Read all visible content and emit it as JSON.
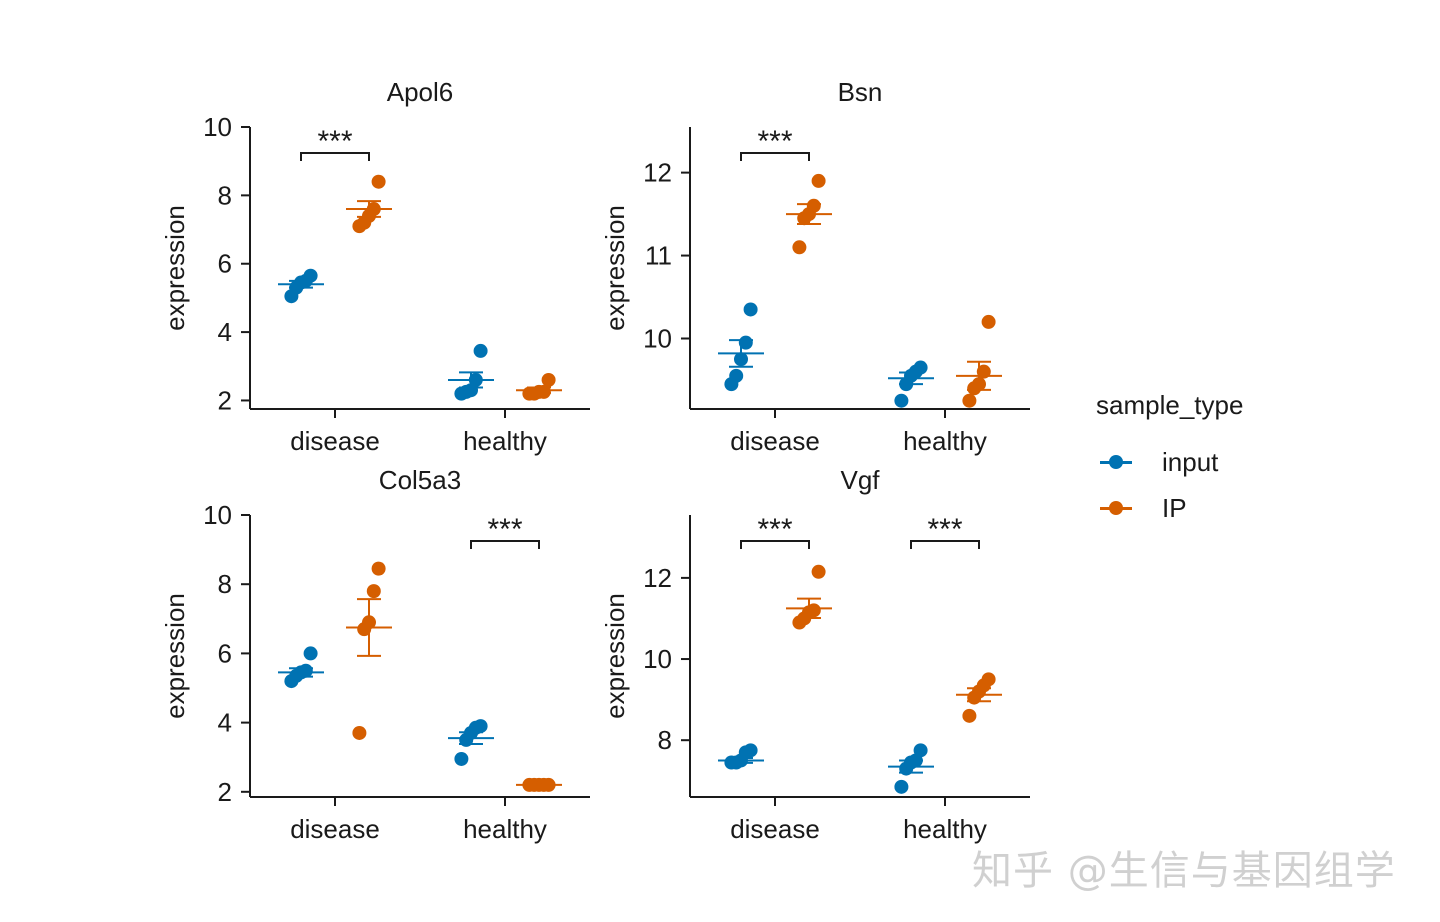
{
  "chart_data": [
    {
      "type": "scatter",
      "title": "Apol6",
      "ylabel": "expression",
      "categories": [
        "disease",
        "healthy"
      ],
      "yticks": [
        2,
        4,
        6,
        8,
        10
      ],
      "ylim": [
        1.75,
        10.0
      ],
      "series": [
        {
          "name": "input",
          "color": "#0072B2",
          "points": [
            [
              5.05,
              5.3,
              5.45,
              5.5,
              5.65
            ],
            [
              2.2,
              2.25,
              2.3,
              2.6,
              3.45
            ]
          ],
          "mean": [
            5.4,
            2.6
          ],
          "se": [
            0.1,
            0.22
          ]
        },
        {
          "name": "IP",
          "color": "#D55E00",
          "points": [
            [
              7.1,
              7.2,
              7.4,
              7.6,
              8.4
            ],
            [
              2.2,
              2.2,
              2.25,
              2.25,
              2.6
            ]
          ],
          "mean": [
            7.6,
            2.3
          ],
          "se": [
            0.23,
            0.08
          ]
        }
      ],
      "annotations": [
        {
          "group": 0,
          "label": "***"
        }
      ]
    },
    {
      "type": "scatter",
      "title": "Bsn",
      "ylabel": "expression",
      "categories": [
        "disease",
        "healthy"
      ],
      "yticks": [
        10,
        11,
        12
      ],
      "ylim": [
        9.15,
        12.55
      ],
      "series": [
        {
          "name": "input",
          "color": "#0072B2",
          "points": [
            [
              9.45,
              9.55,
              9.75,
              9.95,
              10.35
            ],
            [
              9.25,
              9.45,
              9.55,
              9.6,
              9.65
            ]
          ],
          "mean": [
            9.82,
            9.52
          ],
          "se": [
            0.16,
            0.07
          ]
        },
        {
          "name": "IP",
          "color": "#D55E00",
          "points": [
            [
              11.1,
              11.45,
              11.5,
              11.6,
              11.9
            ],
            [
              9.25,
              9.4,
              9.45,
              9.6,
              10.2
            ]
          ],
          "mean": [
            11.5,
            9.55
          ],
          "se": [
            0.12,
            0.17
          ]
        }
      ],
      "annotations": [
        {
          "group": 0,
          "label": "***"
        }
      ]
    },
    {
      "type": "scatter",
      "title": "Col5a3",
      "ylabel": "expression",
      "categories": [
        "disease",
        "healthy"
      ],
      "yticks": [
        2,
        4,
        6,
        8,
        10
      ],
      "ylim": [
        1.85,
        10.0
      ],
      "series": [
        {
          "name": "input",
          "color": "#0072B2",
          "points": [
            [
              5.2,
              5.35,
              5.45,
              5.5,
              6.0
            ],
            [
              2.95,
              3.5,
              3.7,
              3.85,
              3.9
            ]
          ],
          "mean": [
            5.45,
            3.55
          ],
          "se": [
            0.12,
            0.17
          ]
        },
        {
          "name": "IP",
          "color": "#D55E00",
          "points": [
            [
              3.7,
              6.7,
              6.9,
              7.8,
              8.45
            ],
            [
              2.2,
              2.2,
              2.2,
              2.2,
              2.2
            ]
          ],
          "mean": [
            6.75,
            2.2
          ],
          "se": [
            0.82,
            0.02
          ]
        }
      ],
      "annotations": [
        {
          "group": 1,
          "label": "***"
        }
      ]
    },
    {
      "type": "scatter",
      "title": "Vgf",
      "ylabel": "expression",
      "categories": [
        "disease",
        "healthy"
      ],
      "yticks": [
        8,
        10,
        12
      ],
      "ylim": [
        6.6,
        13.55
      ],
      "series": [
        {
          "name": "input",
          "color": "#0072B2",
          "points": [
            [
              7.45,
              7.45,
              7.5,
              7.7,
              7.75
            ],
            [
              6.85,
              7.3,
              7.45,
              7.5,
              7.75
            ]
          ],
          "mean": [
            7.5,
            7.35
          ],
          "se": [
            0.06,
            0.15
          ]
        },
        {
          "name": "IP",
          "color": "#D55E00",
          "points": [
            [
              10.9,
              11.0,
              11.15,
              11.2,
              12.15
            ],
            [
              8.6,
              9.05,
              9.2,
              9.35,
              9.5
            ]
          ],
          "mean": [
            11.25,
            9.12
          ],
          "se": [
            0.24,
            0.16
          ]
        }
      ],
      "annotations": [
        {
          "group": 0,
          "label": "***"
        },
        {
          "group": 1,
          "label": "***"
        }
      ]
    }
  ],
  "legend": {
    "title": "sample_type",
    "items": [
      {
        "label": "input",
        "color": "#0072B2"
      },
      {
        "label": "IP",
        "color": "#D55E00"
      }
    ]
  },
  "watermark": "知乎 @生信与基因组学"
}
